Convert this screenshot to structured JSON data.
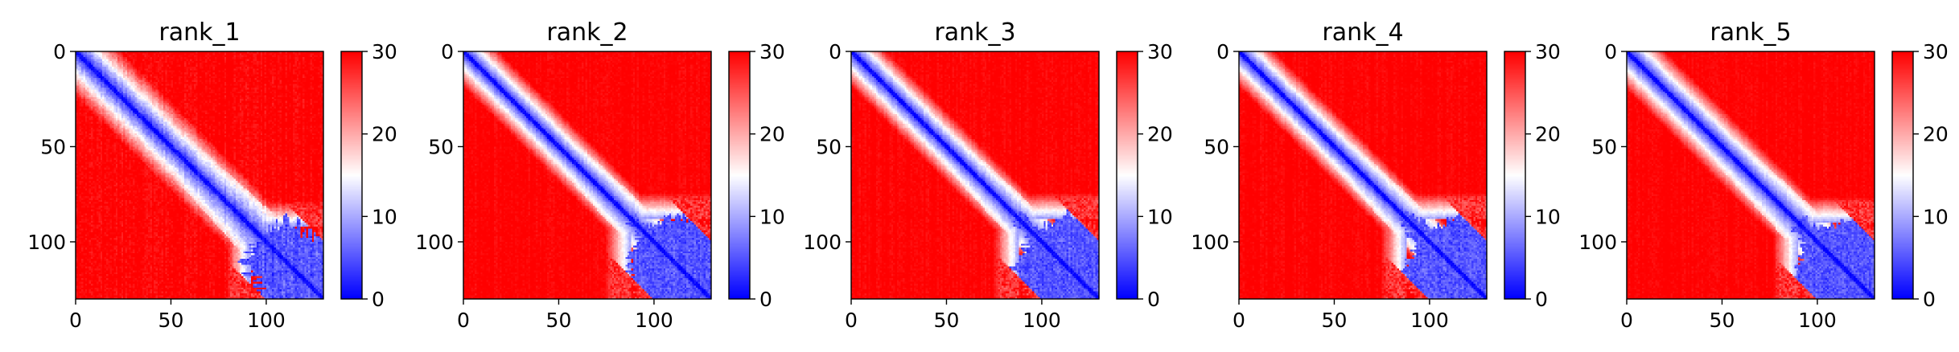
{
  "chart_data": [
    {
      "type": "heatmap",
      "title": "rank_1",
      "matrix_size": 130,
      "xticks": [
        0,
        50,
        100
      ],
      "yticks": [
        0,
        50,
        100
      ],
      "colorbar": {
        "ticks": [
          0,
          10,
          20,
          30
        ],
        "vmin": 0,
        "vmax": 30,
        "colormap": "bwr"
      },
      "pattern": {
        "domain_boundary": 92,
        "block_edge_wobble": 9,
        "diagonal_band": 14,
        "noise": 0.35
      }
    },
    {
      "type": "heatmap",
      "title": "rank_2",
      "matrix_size": 130,
      "xticks": [
        0,
        50,
        100
      ],
      "yticks": [
        0,
        50,
        100
      ],
      "colorbar": {
        "ticks": [
          0,
          10,
          20,
          30
        ],
        "vmin": 0,
        "vmax": 30,
        "colormap": "bwr"
      },
      "pattern": {
        "domain_boundary": 88,
        "block_edge_wobble": 5,
        "diagonal_band": 11,
        "noise": 0.22
      }
    },
    {
      "type": "heatmap",
      "title": "rank_3",
      "matrix_size": 130,
      "xticks": [
        0,
        50,
        100
      ],
      "yticks": [
        0,
        50,
        100
      ],
      "colorbar": {
        "ticks": [
          0,
          10,
          20,
          30
        ],
        "vmin": 0,
        "vmax": 30,
        "colormap": "bwr"
      },
      "pattern": {
        "domain_boundary": 88,
        "block_edge_wobble": 6,
        "diagonal_band": 11,
        "noise": 0.22
      }
    },
    {
      "type": "heatmap",
      "title": "rank_4",
      "matrix_size": 130,
      "xticks": [
        0,
        50,
        100
      ],
      "yticks": [
        0,
        50,
        100
      ],
      "colorbar": {
        "ticks": [
          0,
          10,
          20,
          30
        ],
        "vmin": 0,
        "vmax": 30,
        "colormap": "bwr"
      },
      "pattern": {
        "domain_boundary": 88,
        "block_edge_wobble": 6,
        "diagonal_band": 11,
        "noise": 0.22
      }
    },
    {
      "type": "heatmap",
      "title": "rank_5",
      "matrix_size": 130,
      "xticks": [
        0,
        50,
        100
      ],
      "yticks": [
        0,
        50,
        100
      ],
      "colorbar": {
        "ticks": [
          0,
          10,
          20,
          30
        ],
        "vmin": 0,
        "vmax": 30,
        "colormap": "bwr"
      },
      "pattern": {
        "domain_boundary": 90,
        "block_edge_wobble": 5,
        "diagonal_band": 12,
        "noise": 0.2
      }
    }
  ]
}
